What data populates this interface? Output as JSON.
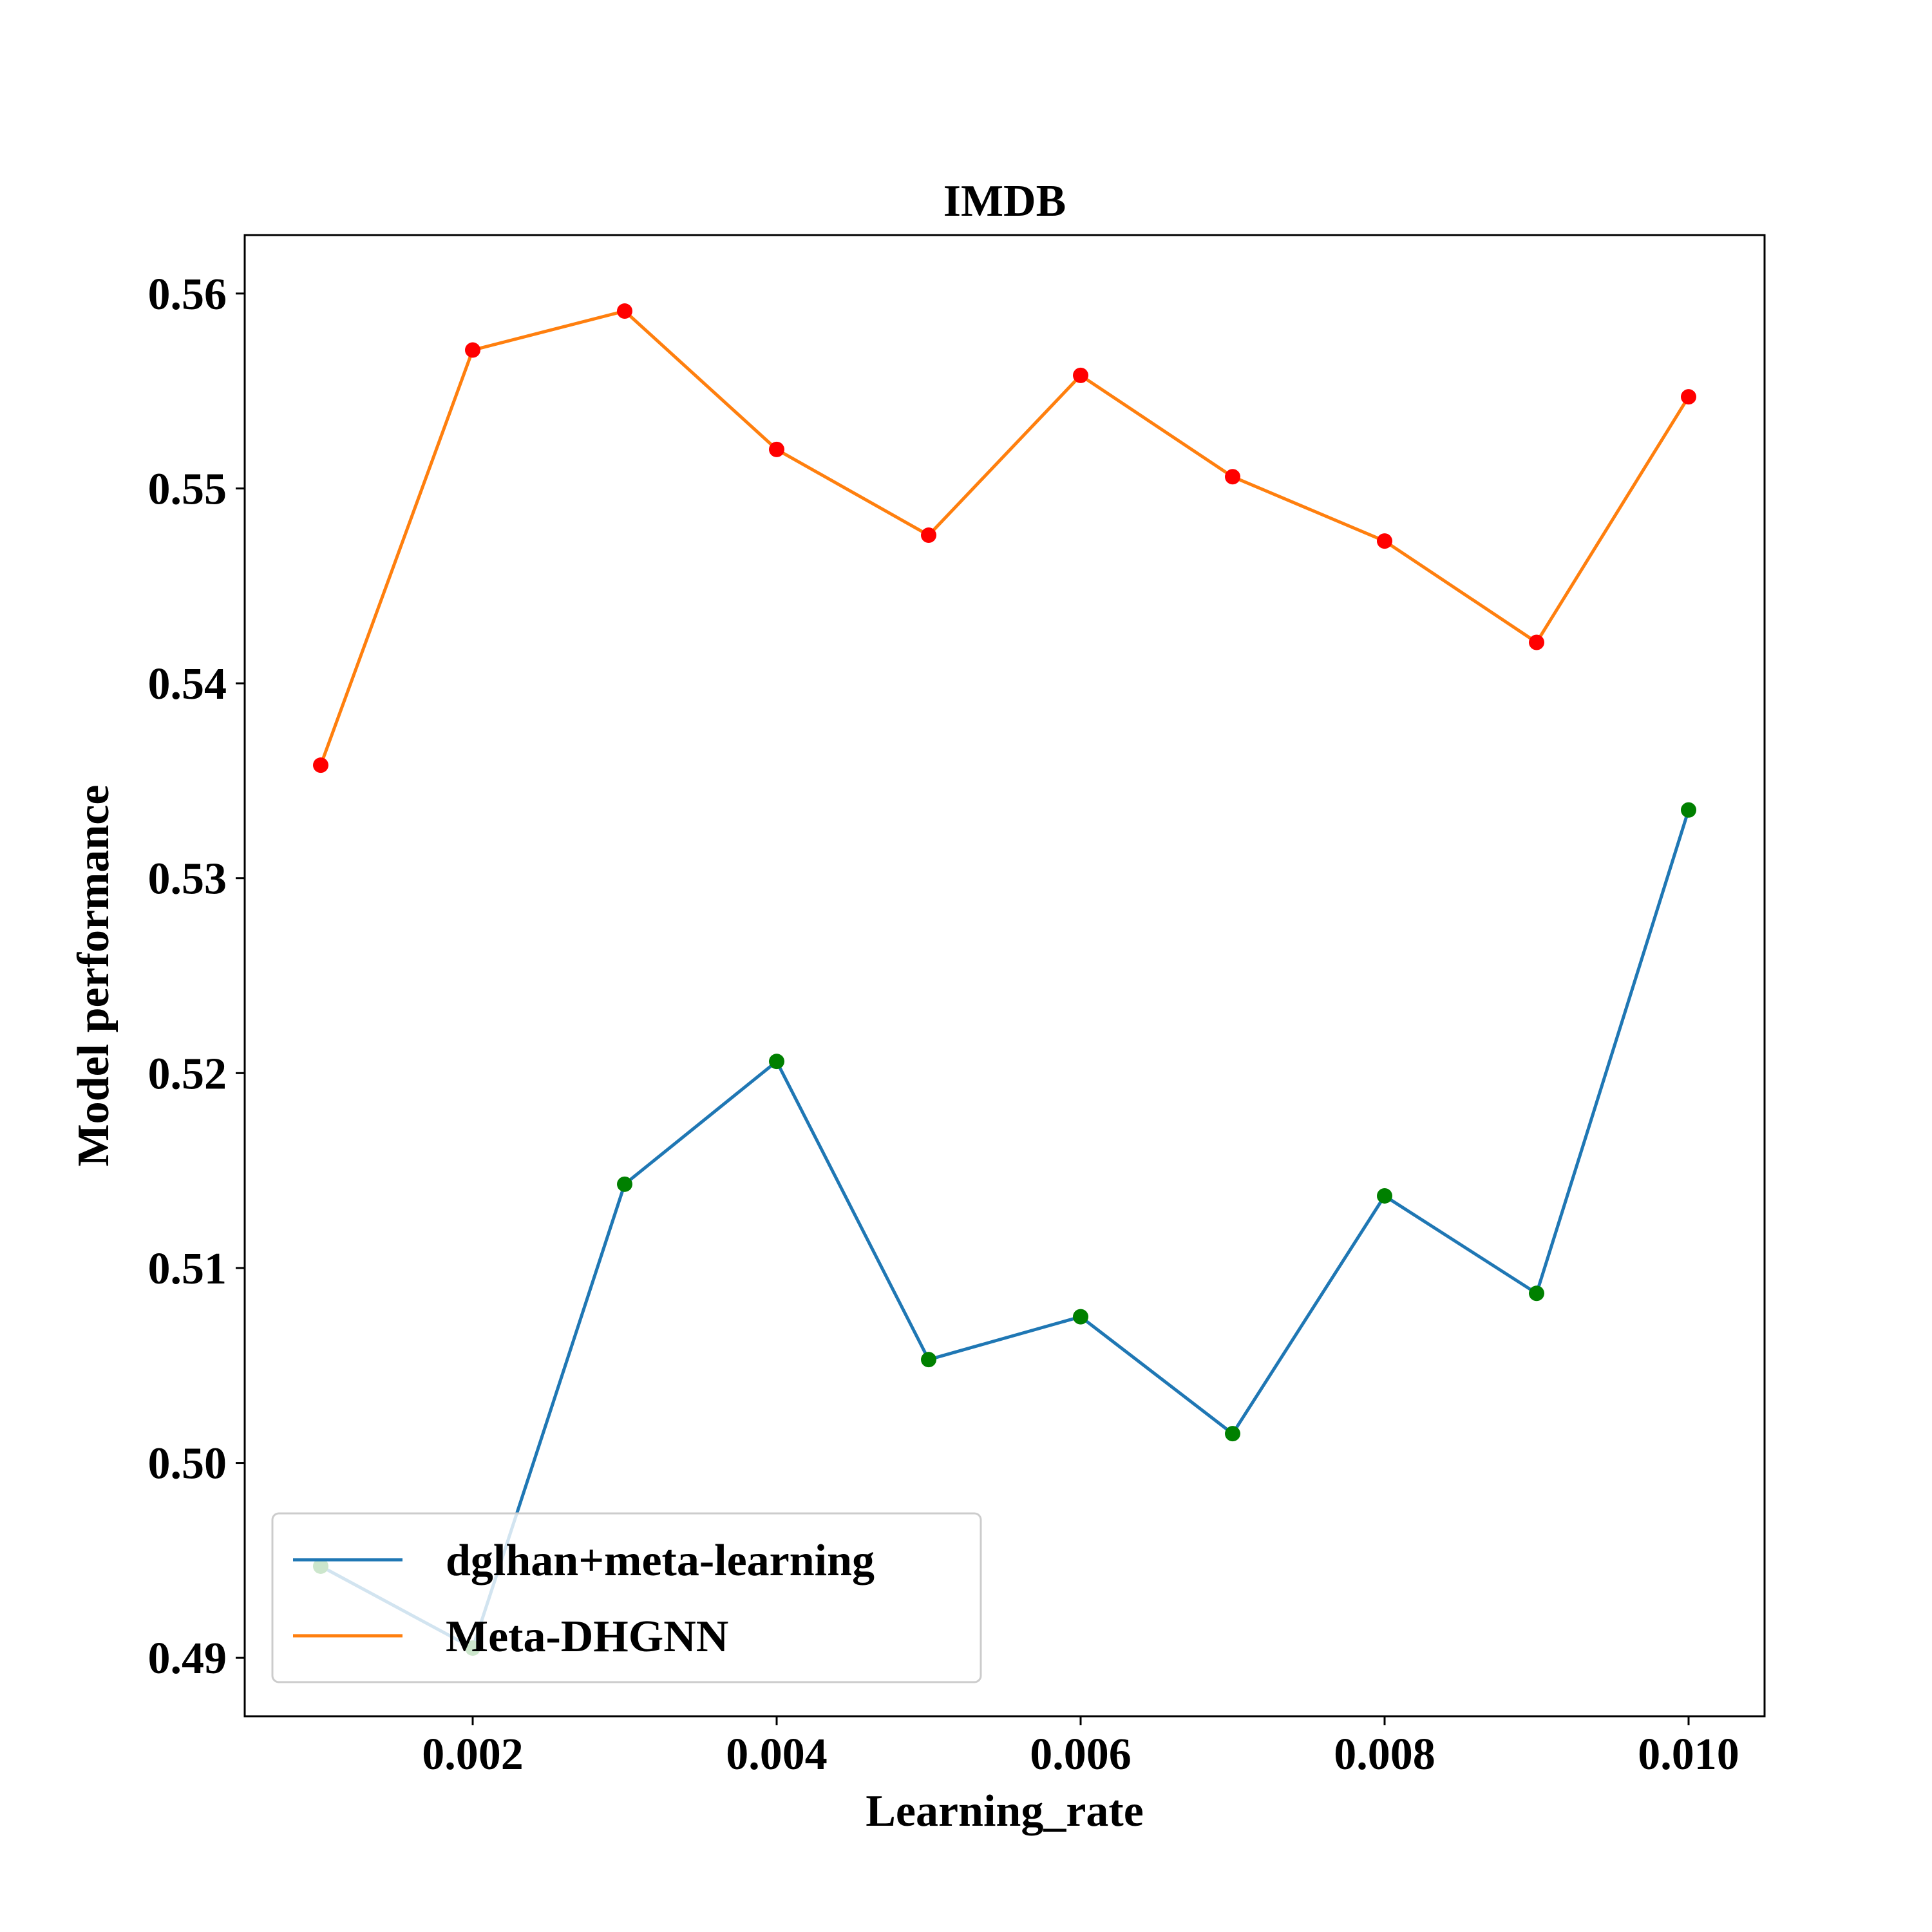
{
  "chart_data": {
    "type": "line",
    "title": "IMDB",
    "xlabel": "Learning_rate",
    "ylabel": "Model performance",
    "xlim": [
      0.0005,
      0.0105
    ],
    "ylim": [
      0.487,
      0.563
    ],
    "x_ticks": [
      0.002,
      0.004,
      0.006,
      0.008,
      0.01
    ],
    "x_tick_labels": [
      "0.002",
      "0.004",
      "0.006",
      "0.008",
      "0.010"
    ],
    "y_ticks": [
      0.49,
      0.5,
      0.51,
      0.52,
      0.53,
      0.54,
      0.55,
      0.56
    ],
    "y_tick_labels": [
      "0.49",
      "0.50",
      "0.51",
      "0.52",
      "0.53",
      "0.54",
      "0.55",
      "0.56"
    ],
    "grid": false,
    "legend_position": "lower-left",
    "x": [
      0.001,
      0.002,
      0.003,
      0.004,
      0.005,
      0.006,
      0.007,
      0.008,
      0.009,
      0.01
    ],
    "series": [
      {
        "name": "dglhan+meta-learning",
        "line_color": "#1f77b4",
        "marker_color": "#008000",
        "values": [
          0.4947,
          0.4905,
          0.5143,
          0.5206,
          0.5053,
          0.5075,
          0.5015,
          0.5137,
          0.5087,
          0.5335
        ]
      },
      {
        "name": "Meta-DHGNN",
        "line_color": "#ff7f0e",
        "marker_color": "#ff0000",
        "values": [
          0.5358,
          0.5571,
          0.5591,
          0.552,
          0.5476,
          0.5558,
          0.5506,
          0.5473,
          0.5421,
          0.5547
        ]
      }
    ]
  }
}
